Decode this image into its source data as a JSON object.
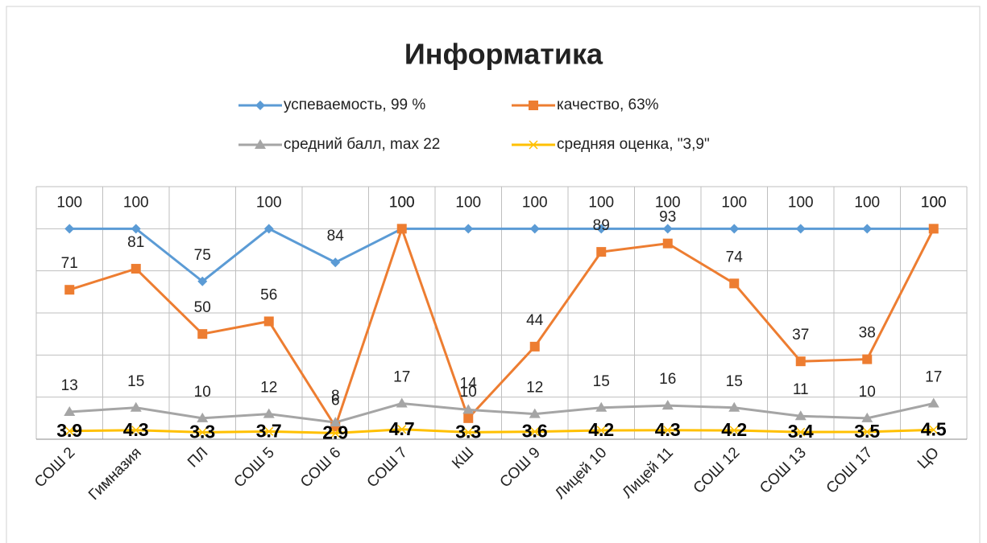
{
  "chart_data": {
    "type": "line",
    "title": "Информатика",
    "categories": [
      "СОШ 2",
      "Гимназия",
      "ПЛ",
      "СОШ 5",
      "СОШ 6",
      "СОШ 7",
      "КШ",
      "СОШ 9",
      "Лицей 10",
      "Лицей 11",
      "СОШ 12",
      "СОШ 13",
      "СОШ 17",
      "ЦО"
    ],
    "series": [
      {
        "name": "успеваемость,  99 %",
        "color": "#5b9bd5",
        "marker": "diamond",
        "values": [
          100,
          100,
          75,
          100,
          84,
          100,
          100,
          100,
          100,
          100,
          100,
          100,
          100,
          100
        ]
      },
      {
        "name": "качество, 63%",
        "color": "#ed7d31",
        "marker": "square",
        "values": [
          71,
          81,
          50,
          56,
          6,
          100,
          10,
          44,
          89,
          93,
          74,
          37,
          38,
          100
        ]
      },
      {
        "name": "средний балл, max 22",
        "color": "#a5a5a5",
        "marker": "triangle",
        "values": [
          13,
          15,
          10,
          12,
          8,
          17,
          14,
          12,
          15,
          16,
          15,
          11,
          10,
          17
        ]
      },
      {
        "name": "средняя оценка, \"3,9\"",
        "color": "#ffc000",
        "marker": "x",
        "values": [
          3.9,
          4.3,
          3.3,
          3.7,
          2.9,
          4.7,
          3.3,
          3.6,
          4.2,
          4.3,
          4.2,
          3.4,
          3.5,
          4.5
        ]
      }
    ],
    "ylim": [
      0,
      120
    ],
    "yticks": [
      0,
      20,
      40,
      60,
      80,
      100,
      120
    ],
    "show_ytick_labels": false,
    "grid": true,
    "legend": "top"
  }
}
